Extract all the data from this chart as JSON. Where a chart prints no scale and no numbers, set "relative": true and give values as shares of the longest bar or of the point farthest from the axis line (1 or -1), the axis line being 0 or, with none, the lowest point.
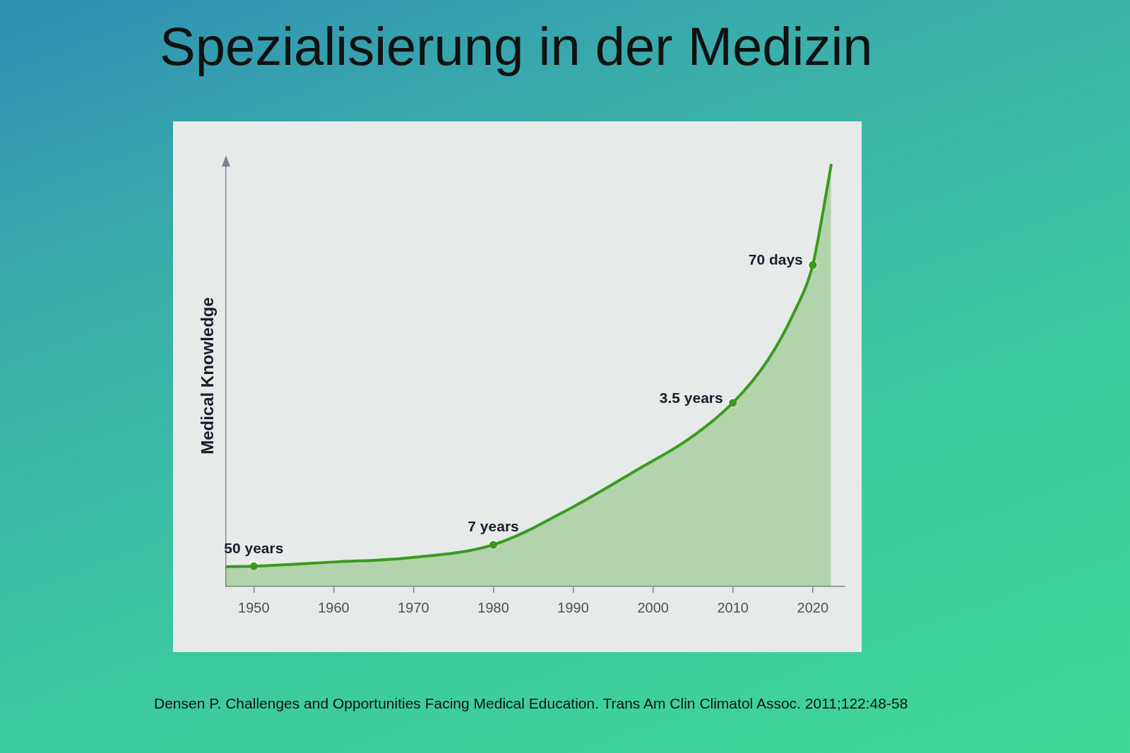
{
  "chart_data": {
    "type": "area",
    "title": "Spezialisierung in der Medizin",
    "ylabel": "Medical Knowledge",
    "relative": true,
    "tick_labels": "x",
    "xlim": [
      1946.5,
      2024
    ],
    "xticks": [
      1950,
      1960,
      1970,
      1980,
      1990,
      2000,
      2010,
      2020
    ],
    "series": [
      {
        "type": "area",
        "color": "#3a9a1e",
        "x": [
          1946.5,
          1950,
          1960,
          1969.4,
          1980,
          1990,
          1998.2,
          2004.4,
          2010,
          2014.4,
          2017.6,
          2020,
          2021.2,
          2022.3
        ],
        "values": [
          0.047,
          0.048,
          0.058,
          0.068,
          0.099,
          0.189,
          0.279,
          0.349,
          0.436,
          0.538,
          0.648,
          0.763,
          0.88,
          1
        ]
      },
      {
        "type": "scatter",
        "color": "#3a9a1e",
        "marker": "circle",
        "x": [
          1950,
          1980,
          2010,
          2020
        ],
        "values": [
          0.048,
          0.099,
          0.436,
          0.763
        ]
      }
    ],
    "annotations": [
      {
        "text": "50 years",
        "x": 1950,
        "y": 0.048
      },
      {
        "text": "7 years",
        "x": 1980,
        "y": 0.099
      },
      {
        "text": "3.5 years",
        "x": 2010,
        "y": 0.436
      },
      {
        "text": "70 days",
        "x": 2020,
        "y": 0.763
      },
      "Densen P. Challenges and Opportunities Facing Medical Education. Trans Am Clin Climatol Assoc. 2011;122:48-58"
    ]
  }
}
